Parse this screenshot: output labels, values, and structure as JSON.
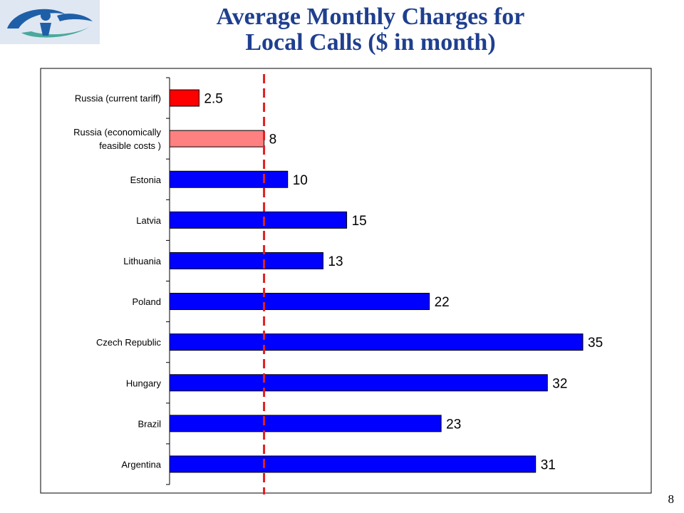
{
  "title": {
    "line1": "Average Monthly Charges for",
    "line2": "Local Calls ($ in month)"
  },
  "page_number": "8",
  "logo": {
    "icon": "organization-logo",
    "colors": [
      "#1f5fa8",
      "#4aa89c",
      "#dfe7f2"
    ]
  },
  "colors": {
    "title": "#1f3f8f",
    "highlight": "#ff0000",
    "secondary": "#ff8080",
    "default": "#0000ff",
    "reference_line": "#e02020"
  },
  "chart_data": {
    "type": "bar",
    "orientation": "horizontal",
    "categories": [
      [
        "Russia (current tariff)"
      ],
      [
        "Russia (economically",
        "feasible costs )"
      ],
      [
        "Estonia"
      ],
      [
        "Latvia"
      ],
      [
        "Lithuania"
      ],
      [
        "Poland"
      ],
      [
        "Czech Republic"
      ],
      [
        "Hungary"
      ],
      [
        "Brazil"
      ],
      [
        "Argentina"
      ]
    ],
    "values": [
      2.5,
      8,
      10,
      15,
      13,
      22,
      35,
      32,
      23,
      31
    ],
    "value_labels": [
      "2.5",
      "8",
      "10",
      "15",
      "13",
      "22",
      "35",
      "32",
      "23",
      "31"
    ],
    "bar_colors": [
      "#ff0000",
      "#ff8080",
      "#0000ff",
      "#0000ff",
      "#0000ff",
      "#0000ff",
      "#0000ff",
      "#0000ff",
      "#0000ff",
      "#0000ff"
    ],
    "xlim": [
      0,
      35
    ],
    "reference_line": {
      "value": 8,
      "style": "dashed",
      "color": "#e02020"
    },
    "grid": false,
    "legend": "none",
    "title": "",
    "xlabel": "",
    "ylabel": ""
  }
}
